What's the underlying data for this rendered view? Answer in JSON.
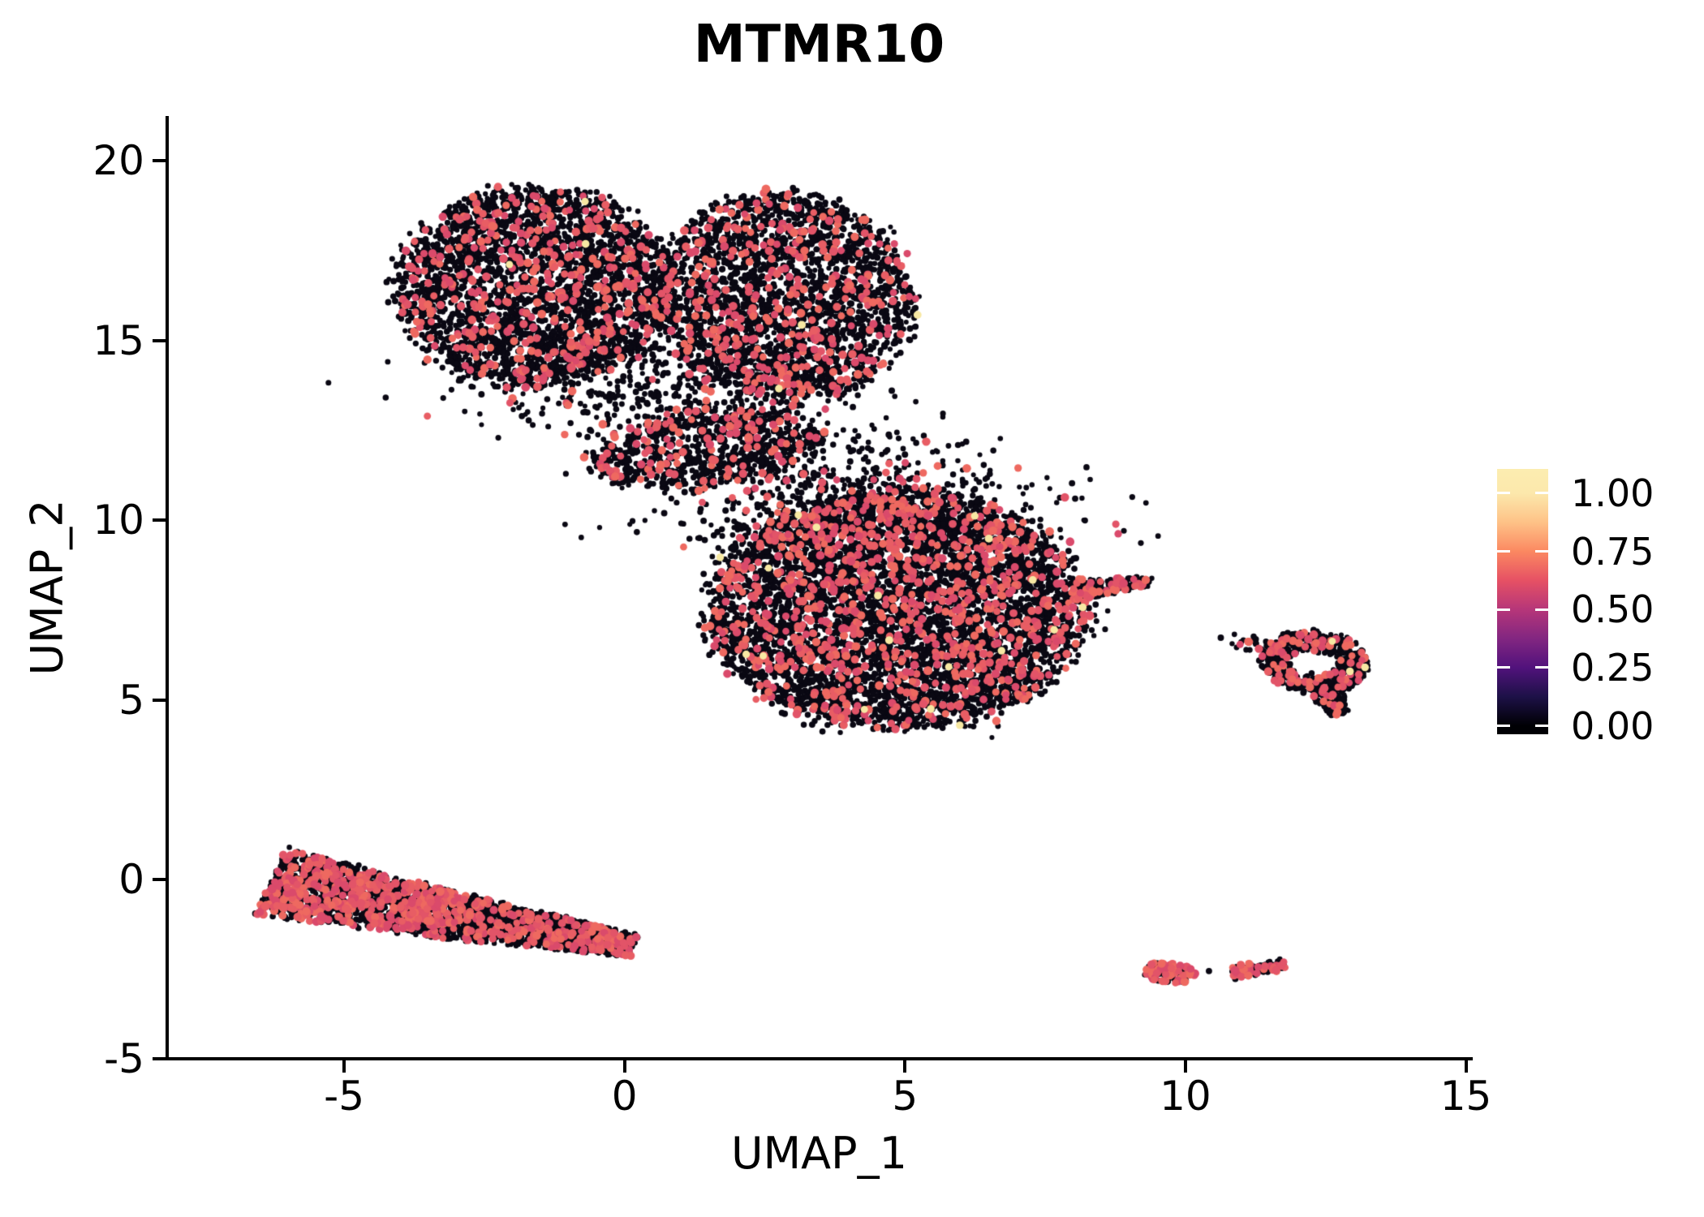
{
  "title": "MTMR10",
  "axes": {
    "x": {
      "label": "UMAP_1",
      "tick_labels": [
        "-5",
        "0",
        "5",
        "10",
        "15"
      ],
      "tick_values": [
        -5,
        0,
        5,
        10,
        15
      ]
    },
    "y": {
      "label": "UMAP_2",
      "tick_labels": [
        "20",
        "15",
        "10",
        "5",
        "0",
        "-5"
      ],
      "tick_values": [
        20,
        15,
        10,
        5,
        0,
        -5
      ]
    }
  },
  "legend": {
    "tick_labels": [
      "1.00",
      "0.75",
      "0.50",
      "0.25",
      "0.00"
    ],
    "tick_values": [
      1.0,
      0.75,
      0.5,
      0.25,
      0.0
    ],
    "colormap_name": "magma",
    "colormap": [
      {
        "v": 0.0,
        "c": "#000004"
      },
      {
        "v": 0.125,
        "c": "#1D1147"
      },
      {
        "v": 0.25,
        "c": "#51127C"
      },
      {
        "v": 0.375,
        "c": "#822681"
      },
      {
        "v": 0.5,
        "c": "#B63679"
      },
      {
        "v": 0.625,
        "c": "#E65164"
      },
      {
        "v": 0.75,
        "c": "#FB8861"
      },
      {
        "v": 0.875,
        "c": "#FEC287"
      },
      {
        "v": 1.0,
        "c": "#FCE8AC"
      }
    ]
  },
  "chart_data": {
    "type": "scatter",
    "title": "MTMR10",
    "xlabel": "UMAP_1",
    "ylabel": "UMAP_2",
    "xlim": [
      -8.2,
      15.3
    ],
    "ylim": [
      -5.1,
      21.3
    ],
    "grid": false,
    "legend_position": "right",
    "point_colors": {
      "low": "#0A0813",
      "mid": [
        "#DA4A6B",
        "#E25468",
        "#E85D64",
        "#EE6960"
      ],
      "high": "#F7E8A3"
    },
    "point_radius": {
      "low": [
        3.0,
        4.0
      ],
      "mid": [
        4.3,
        5.4
      ],
      "high": [
        4.4,
        5.0
      ]
    },
    "seed": 20240517,
    "clusters": [
      {
        "name": "top-left-lobe",
        "shape": "disc",
        "c": [
          -1.6,
          16.5
        ],
        "r": [
          2.45,
          2.75
        ],
        "rot": -6,
        "n": 3200,
        "expr": 0.13,
        "high": 0.002
      },
      {
        "name": "top-right-lobe",
        "shape": "disc",
        "c": [
          2.85,
          16.2
        ],
        "r": [
          2.25,
          2.9
        ],
        "rot": 4,
        "n": 2700,
        "expr": 0.13,
        "high": 0.002
      },
      {
        "name": "top-lower-fringe",
        "shape": "gauss",
        "c": [
          0.2,
          13.6
        ],
        "s": [
          1.6,
          0.75
        ],
        "n": 430,
        "expr": 0.1,
        "high": 0
      },
      {
        "name": "neck-wedge",
        "shape": "disc",
        "c": [
          1.45,
          12.0
        ],
        "r": [
          2.1,
          1.05
        ],
        "rot": 13,
        "n": 780,
        "expr": 0.13,
        "high": 0
      },
      {
        "name": "neck-bridge",
        "shape": "gauss",
        "c": [
          3.5,
          11.1
        ],
        "s": [
          1.25,
          1.0
        ],
        "n": 300,
        "expr": 0.1,
        "high": 0
      },
      {
        "name": "central-blob",
        "shape": "disc",
        "c": [
          4.85,
          7.5
        ],
        "r": [
          3.35,
          3.3
        ],
        "rot": 0,
        "n": 6000,
        "expr": 0.15,
        "high": 0.0015
      },
      {
        "name": "central-right-tip",
        "shape": "band",
        "p1": [
          7.95,
          8.0
        ],
        "p2": [
          9.35,
          8.3
        ],
        "w": [
          0.3,
          0.1
        ],
        "n": 160,
        "expr": 0.18,
        "high": 0
      },
      {
        "name": "central-top-fringe",
        "shape": "gauss",
        "c": [
          4.2,
          10.45
        ],
        "s": [
          1.9,
          0.75
        ],
        "n": 380,
        "expr": 0.12,
        "high": 0
      },
      {
        "name": "right-ring",
        "shape": "ring",
        "c": [
          12.3,
          6.05
        ],
        "r0": 0.42,
        "r1": 0.98,
        "squash": 0.85,
        "rot": -15,
        "n": 600,
        "expr": 0.13,
        "high": 0.003
      },
      {
        "name": "right-ring-arm",
        "shape": "band",
        "p1": [
          12.5,
          5.3
        ],
        "p2": [
          12.72,
          4.6
        ],
        "w": [
          0.28,
          0.16
        ],
        "n": 140,
        "expr": 0.12,
        "high": 0
      },
      {
        "name": "right-ring-scatter",
        "shape": "gauss",
        "c": [
          11.1,
          6.6
        ],
        "s": [
          0.3,
          0.12
        ],
        "n": 22,
        "expr": 0.1,
        "high": 0
      },
      {
        "name": "lower-band-left",
        "shape": "band",
        "p1": [
          -6.3,
          -0.05
        ],
        "p2": [
          -3.1,
          -1.0
        ],
        "w": [
          0.92,
          0.62
        ],
        "n": 1400,
        "expr": 0.3,
        "high": 0
      },
      {
        "name": "lower-band-right",
        "shape": "band",
        "p1": [
          -3.1,
          -1.0
        ],
        "p2": [
          0.15,
          -1.85
        ],
        "w": [
          0.62,
          0.3
        ],
        "n": 1250,
        "expr": 0.16,
        "high": 0
      },
      {
        "name": "small-left-blob",
        "shape": "disc",
        "c": [
          9.72,
          -2.6
        ],
        "r": [
          0.45,
          0.28
        ],
        "rot": -10,
        "n": 120,
        "expr": 0.5,
        "high": 0
      },
      {
        "name": "small-right-band",
        "shape": "band",
        "p1": [
          10.85,
          -2.62
        ],
        "p2": [
          11.78,
          -2.36
        ],
        "w": [
          0.14,
          0.12
        ],
        "n": 115,
        "expr": 0.35,
        "high": 0
      }
    ],
    "singles": [
      [
        10.42,
        -2.55
      ],
      [
        6.55,
        3.95
      ]
    ]
  }
}
